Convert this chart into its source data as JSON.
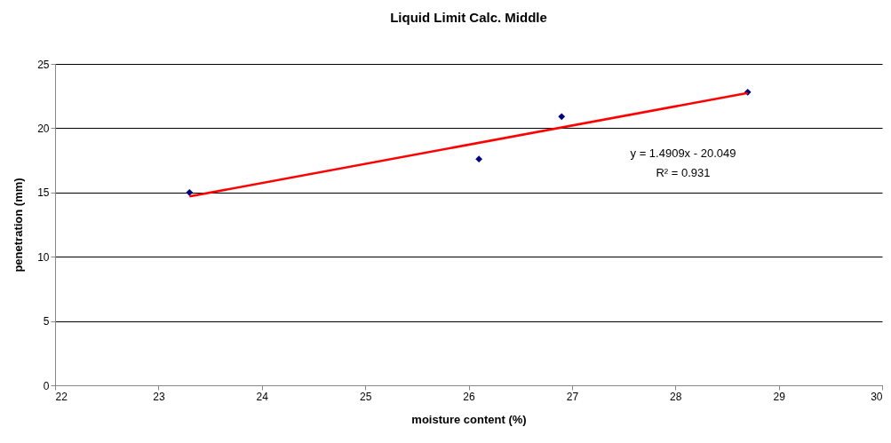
{
  "chart_data": {
    "type": "scatter",
    "title": "Liquid Limit Calc. Middle",
    "xlabel": "moisture content (%)",
    "ylabel": "penetration (mm)",
    "series": [
      {
        "type": "scatter",
        "color": "#000080",
        "marker": "diamond",
        "x": [
          23.3,
          26.1,
          26.9,
          28.7
        ],
        "values": [
          15.0,
          17.6,
          20.9,
          22.8
        ]
      },
      {
        "type": "line",
        "color": "#ff0000",
        "marker": "none",
        "x": [
          23.3,
          28.7
        ],
        "values": [
          14.69,
          22.74
        ]
      }
    ],
    "annotations": [
      "y = 1.4909x - 20.049",
      "R² = 0.931"
    ],
    "xlim": [
      22,
      30
    ],
    "xticks": [
      22,
      23,
      24,
      25,
      26,
      27,
      28,
      29,
      30
    ],
    "ylim": [
      0,
      25
    ],
    "yticks": [
      0,
      5,
      10,
      15,
      20,
      25
    ],
    "grid": "y"
  }
}
